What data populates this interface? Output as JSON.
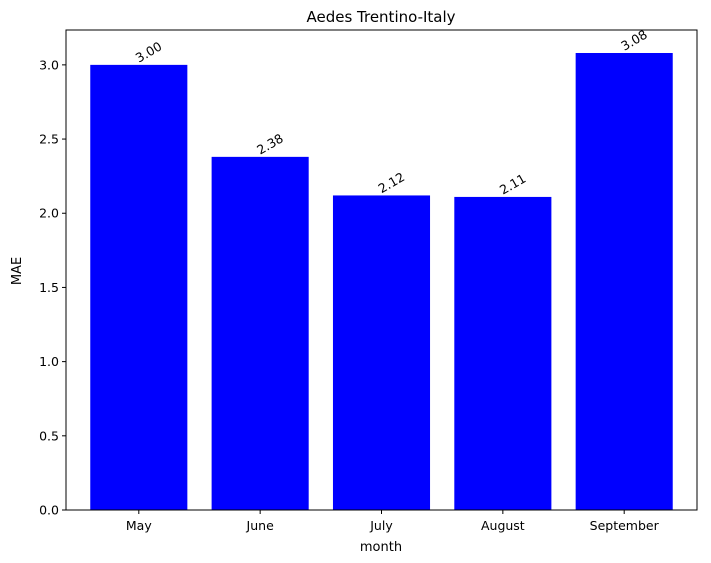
{
  "chart_data": {
    "type": "bar",
    "title": "Aedes Trentino-Italy",
    "xlabel": "month",
    "ylabel": "MAE",
    "categories": [
      "May",
      "June",
      "July",
      "August",
      "September"
    ],
    "values": [
      3.0,
      2.38,
      2.12,
      2.11,
      3.08
    ],
    "value_labels": [
      "3.00",
      "2.38",
      "2.12",
      "2.11",
      "3.08"
    ],
    "ylim": [
      0,
      3.235
    ],
    "yticks": [
      0.0,
      0.5,
      1.0,
      1.5,
      2.0,
      2.5,
      3.0
    ],
    "ytick_labels": [
      "0.0",
      "0.5",
      "1.0",
      "1.5",
      "2.0",
      "2.5",
      "3.0"
    ],
    "grid": false,
    "bar_color": "#0000ff"
  }
}
